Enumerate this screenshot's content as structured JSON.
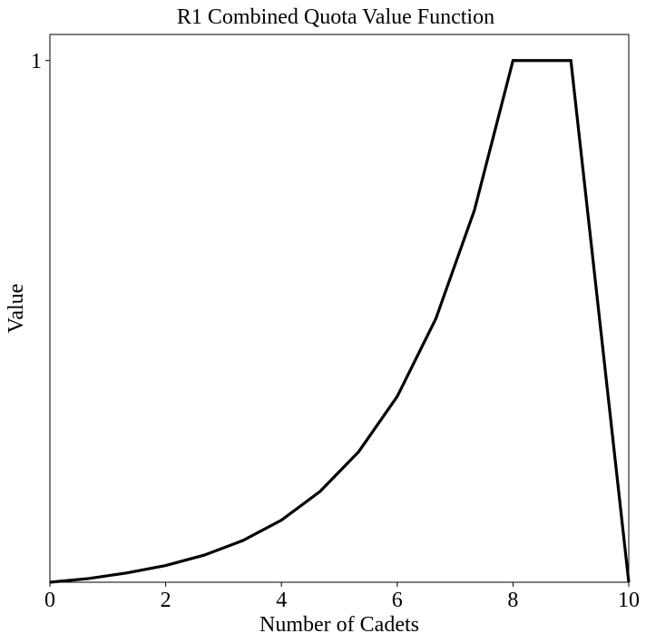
{
  "chart_data": {
    "type": "line",
    "title": "R1 Combined Quota Value Function",
    "xlabel": "Number of Cadets",
    "ylabel": "Value",
    "xlim": [
      0,
      10
    ],
    "ylim": [
      0,
      1.05
    ],
    "xticks": [
      0,
      2,
      4,
      6,
      8,
      10
    ],
    "yticks": [
      1
    ],
    "xtick_labels": [
      "0",
      "2",
      "4",
      "6",
      "8",
      "10"
    ],
    "ytick_labels": [
      "1"
    ],
    "grid": false,
    "legend": "none",
    "line_color": "#000000",
    "series": [
      {
        "x": [
          0,
          0.667,
          1.333,
          2,
          2.667,
          3.333,
          4,
          4.667,
          5.333,
          6,
          6.667,
          7.333,
          8,
          9,
          10
        ],
        "y": [
          0,
          0.007,
          0.018,
          0.032,
          0.052,
          0.08,
          0.119,
          0.174,
          0.25,
          0.356,
          0.505,
          0.713,
          1,
          1,
          0
        ]
      }
    ]
  }
}
